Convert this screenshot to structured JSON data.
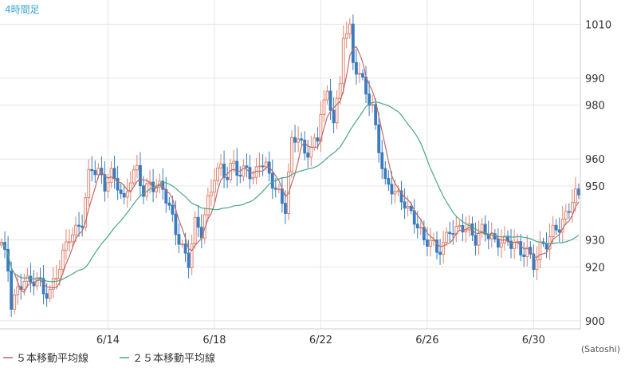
{
  "chart_data": {
    "type": "candlestick",
    "timeframe_label": "4時間足",
    "unit_label": "(Satoshi)",
    "y_ticks": [
      900,
      920,
      930,
      950,
      960,
      980,
      990,
      1010
    ],
    "ylim": [
      897,
      1019
    ],
    "x_ticks": [
      "6/14",
      "6/18",
      "6/22",
      "6/26",
      "6/30"
    ],
    "x_tick_bar_index": [
      33,
      66,
      99,
      132,
      165
    ],
    "legend": [
      {
        "name": "５本移動平均線",
        "color": "#c06a6a"
      },
      {
        "name": "２５本移動平均線",
        "color": "#4aa58c"
      }
    ],
    "colors": {
      "up": "#e0846e",
      "down": "#3a7cbf",
      "ma5": "#c06a6a",
      "ma25": "#4aa58c",
      "grid": "#e6e6e6",
      "label_accent": "#3aa6d0"
    },
    "anchors": [
      [
        0,
        928
      ],
      [
        2,
        918
      ],
      [
        3,
        906
      ],
      [
        5,
        912
      ],
      [
        7,
        917
      ],
      [
        9,
        913
      ],
      [
        11,
        915
      ],
      [
        13,
        910
      ],
      [
        15,
        912
      ],
      [
        17,
        918
      ],
      [
        19,
        924
      ],
      [
        21,
        930
      ],
      [
        23,
        933
      ],
      [
        25,
        938
      ],
      [
        27,
        955
      ],
      [
        28,
        957
      ],
      [
        30,
        954
      ],
      [
        32,
        949
      ],
      [
        34,
        955
      ],
      [
        36,
        952
      ],
      [
        38,
        944
      ],
      [
        40,
        952
      ],
      [
        42,
        955
      ],
      [
        44,
        948
      ],
      [
        46,
        952
      ],
      [
        48,
        950
      ],
      [
        50,
        948
      ],
      [
        52,
        941
      ],
      [
        54,
        934
      ],
      [
        56,
        928
      ],
      [
        58,
        922
      ],
      [
        60,
        935
      ],
      [
        62,
        932
      ],
      [
        64,
        945
      ],
      [
        66,
        955
      ],
      [
        68,
        957
      ],
      [
        70,
        952
      ],
      [
        72,
        958
      ],
      [
        74,
        954
      ],
      [
        76,
        959
      ],
      [
        78,
        952
      ],
      [
        80,
        958
      ],
      [
        82,
        956
      ],
      [
        84,
        952
      ],
      [
        86,
        948
      ],
      [
        88,
        942
      ],
      [
        90,
        965
      ],
      [
        92,
        968
      ],
      [
        94,
        962
      ],
      [
        96,
        966
      ],
      [
        98,
        967
      ],
      [
        99,
        978
      ],
      [
        101,
        982
      ],
      [
        103,
        975
      ],
      [
        105,
        988
      ],
      [
        106,
        1008
      ],
      [
        108,
        1008
      ],
      [
        109,
        995
      ],
      [
        111,
        990
      ],
      [
        113,
        985
      ],
      [
        115,
        980
      ],
      [
        117,
        965
      ],
      [
        119,
        950
      ],
      [
        121,
        948
      ],
      [
        123,
        946
      ],
      [
        125,
        945
      ],
      [
        127,
        940
      ],
      [
        129,
        935
      ],
      [
        131,
        928
      ],
      [
        133,
        930
      ],
      [
        135,
        927
      ],
      [
        137,
        929
      ],
      [
        139,
        933
      ],
      [
        141,
        932
      ],
      [
        143,
        935
      ],
      [
        145,
        935
      ],
      [
        147,
        931
      ],
      [
        149,
        933
      ],
      [
        151,
        931
      ],
      [
        153,
        929
      ],
      [
        155,
        931
      ],
      [
        157,
        930
      ],
      [
        159,
        928
      ],
      [
        161,
        924
      ],
      [
        163,
        926
      ],
      [
        165,
        922
      ],
      [
        167,
        928
      ],
      [
        169,
        928
      ],
      [
        171,
        932
      ],
      [
        173,
        935
      ],
      [
        175,
        940
      ],
      [
        177,
        946
      ],
      [
        178,
        947
      ],
      [
        179,
        945
      ]
    ]
  }
}
